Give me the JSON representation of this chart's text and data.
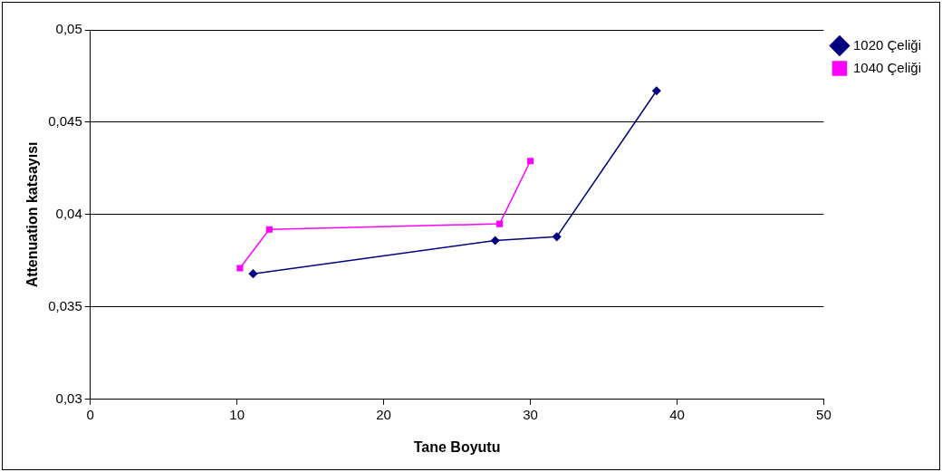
{
  "chart_data": {
    "type": "line",
    "xlabel": "Tane Boyutu",
    "ylabel": "Attenuation katsayısı",
    "xlim": [
      0,
      50
    ],
    "xticks": [
      0,
      10,
      20,
      30,
      40,
      50
    ],
    "ylim": [
      0.03,
      0.05
    ],
    "yticks": [
      {
        "value": 0.03,
        "label": "0,03"
      },
      {
        "value": 0.035,
        "label": "0,035"
      },
      {
        "value": 0.04,
        "label": "0,04"
      },
      {
        "value": 0.045,
        "label": "0,045"
      },
      {
        "value": 0.05,
        "label": "0,05"
      }
    ],
    "grid": "y",
    "legend": "top right",
    "line_style": "solid",
    "series": [
      {
        "name": "1020 Çeliği",
        "color": "#000080",
        "marker": "diamond",
        "x": [
          11.1,
          27.6,
          31.8,
          38.6
        ],
        "values": [
          0.0368,
          0.0386,
          0.0388,
          0.0467
        ]
      },
      {
        "name": "1040 Çeliği",
        "color": "#ff00ff",
        "marker": "square",
        "x": [
          10.2,
          12.2,
          27.9,
          30.0
        ],
        "values": [
          0.0371,
          0.0392,
          0.0395,
          0.0429
        ]
      }
    ]
  }
}
